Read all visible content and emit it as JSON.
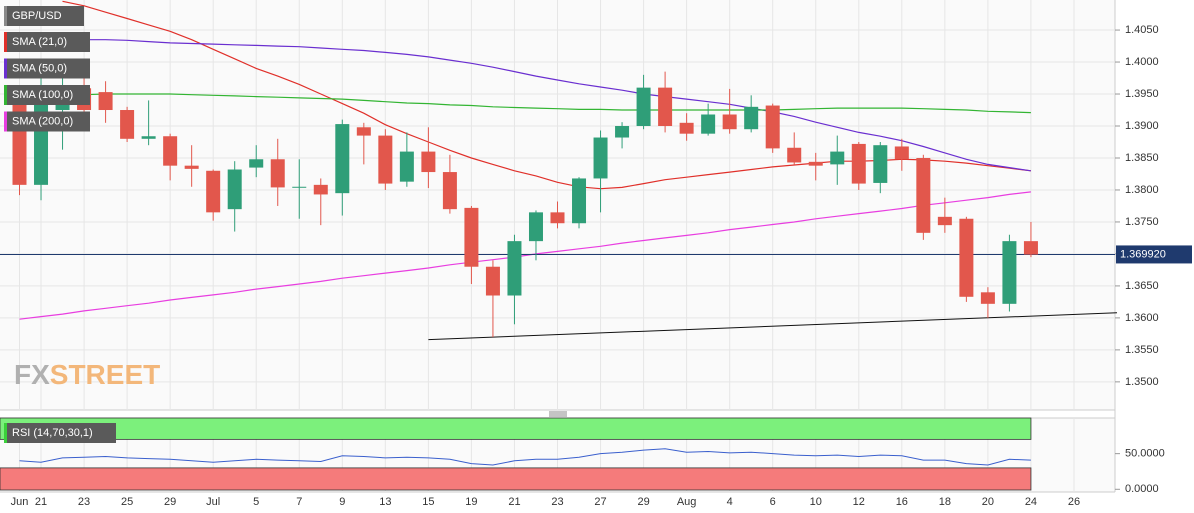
{
  "chart_data": [
    {
      "type": "candlestick",
      "name": "GBP/USD",
      "categories": [
        "Jun",
        "21",
        null,
        "23",
        null,
        "25",
        null,
        "29",
        null,
        "Jul",
        null,
        "5",
        null,
        "7",
        null,
        "9",
        null,
        "13",
        null,
        "15",
        null,
        "19",
        null,
        "21",
        null,
        "23",
        null,
        "27",
        null,
        "29",
        null,
        "Aug",
        null,
        "4",
        null,
        "6",
        null,
        "10",
        null,
        "12",
        null,
        "16",
        null,
        "18",
        null,
        "20",
        null,
        "24",
        null,
        "26"
      ],
      "open": [
        1.394,
        1.3808,
        1.3925,
        1.3959,
        1.3953,
        1.3925,
        1.388,
        1.3884,
        1.3838,
        1.383,
        1.377,
        1.3835,
        1.3848,
        1.3804,
        1.3808,
        1.3795,
        1.3898,
        1.3885,
        1.3813,
        1.386,
        1.3828,
        1.3772,
        1.368,
        1.3635,
        1.372,
        1.3765,
        1.3748,
        1.3818,
        1.3882,
        1.39,
        1.396,
        1.3905,
        1.3888,
        1.3918,
        1.3895,
        1.3932,
        1.3866,
        1.3844,
        1.384,
        1.3872,
        1.3811,
        1.3868,
        1.385,
        1.3758,
        1.3755,
        1.364,
        1.3622,
        1.372,
        null,
        null
      ],
      "high": [
        1.3948,
        1.3998,
        1.4003,
        1.3988,
        1.397,
        1.393,
        1.394,
        1.3888,
        1.387,
        1.3832,
        1.3845,
        1.387,
        1.388,
        1.3848,
        1.3818,
        1.391,
        1.3905,
        1.3895,
        1.389,
        1.3898,
        1.3855,
        1.3775,
        1.369,
        1.373,
        1.3768,
        1.3782,
        1.382,
        1.3893,
        1.3906,
        1.398,
        1.3985,
        1.392,
        1.3935,
        1.3958,
        1.3948,
        1.3935,
        1.389,
        1.3858,
        1.3885,
        1.3875,
        1.3875,
        1.388,
        1.3855,
        1.3788,
        1.3758,
        1.3648,
        1.373,
        1.375,
        null,
        null
      ],
      "low": [
        1.3792,
        1.3784,
        1.3863,
        1.3909,
        1.3905,
        1.3875,
        1.387,
        1.3815,
        1.3805,
        1.3752,
        1.3735,
        1.382,
        1.3775,
        1.3755,
        1.3745,
        1.376,
        1.384,
        1.38,
        1.3805,
        1.3803,
        1.3763,
        1.3653,
        1.357,
        1.359,
        1.369,
        1.374,
        1.374,
        1.3765,
        1.3865,
        1.3895,
        1.389,
        1.3877,
        1.3885,
        1.3888,
        1.389,
        1.3858,
        1.384,
        1.3815,
        1.3808,
        1.38,
        1.3795,
        1.383,
        1.3722,
        1.3733,
        1.3625,
        1.36,
        1.361,
        1.3695,
        null,
        null
      ],
      "close": [
        1.3808,
        1.3941,
        1.3953,
        1.3925,
        1.3925,
        1.388,
        1.3884,
        1.3838,
        1.3833,
        1.3765,
        1.3832,
        1.3848,
        1.3804,
        1.3805,
        1.3793,
        1.3903,
        1.3885,
        1.381,
        1.386,
        1.3828,
        1.377,
        1.368,
        1.3635,
        1.372,
        1.3765,
        1.3748,
        1.3818,
        1.3882,
        1.39,
        1.396,
        1.39,
        1.3888,
        1.3918,
        1.3895,
        1.393,
        1.3865,
        1.3843,
        1.3838,
        1.386,
        1.381,
        1.387,
        1.3848,
        1.3733,
        1.3745,
        1.3633,
        1.3622,
        1.372,
        1.3699,
        null,
        null
      ],
      "up_color": "#2f9e78",
      "down_color": "#e2574c",
      "series": [
        {
          "name": "SMA (21,0)",
          "color": "#e0302a",
          "values": [
            null,
            null,
            1.4095,
            1.4088,
            1.4078,
            1.4068,
            1.4058,
            1.4048,
            1.4035,
            1.402,
            1.4005,
            1.399,
            1.3978,
            1.3965,
            1.395,
            1.3935,
            1.392,
            1.3902,
            1.3888,
            1.3875,
            1.3862,
            1.385,
            1.384,
            1.383,
            1.3822,
            1.3812,
            1.3805,
            1.3802,
            1.3804,
            1.381,
            1.3816,
            1.382,
            1.3824,
            1.3828,
            1.3832,
            1.3836,
            1.3839,
            1.3842,
            1.3845,
            1.3845,
            1.3846,
            1.3848,
            1.3847,
            1.3845,
            1.3842,
            1.3838,
            1.3834,
            1.383,
            null,
            null
          ]
        },
        {
          "name": "SMA (50,0)",
          "color": "#6a2fd0",
          "values": [
            1.403,
            1.4032,
            1.4034,
            1.4035,
            1.4035,
            1.4034,
            1.4032,
            1.403,
            1.4029,
            1.4028,
            1.4027,
            1.4026,
            1.4025,
            1.4024,
            1.4022,
            1.402,
            1.4018,
            1.4015,
            1.4012,
            1.4008,
            1.4003,
            1.3998,
            1.3992,
            1.3985,
            1.3978,
            1.3972,
            1.3966,
            1.3961,
            1.3956,
            1.395,
            1.3946,
            1.3942,
            1.3938,
            1.3934,
            1.3928,
            1.3922,
            1.3915,
            1.3906,
            1.3898,
            1.389,
            1.3884,
            1.3877,
            1.3868,
            1.3858,
            1.3848,
            1.384,
            1.3835,
            1.383,
            null,
            null
          ]
        },
        {
          "name": "SMA (100,0)",
          "color": "#33b533",
          "values": [
            1.3945,
            1.3946,
            1.3948,
            1.3949,
            1.395,
            1.395,
            1.395,
            1.395,
            1.3949,
            1.3948,
            1.3947,
            1.3946,
            1.3945,
            1.3944,
            1.3943,
            1.3942,
            1.394,
            1.3938,
            1.3936,
            1.3935,
            1.3933,
            1.3932,
            1.393,
            1.3929,
            1.3928,
            1.3927,
            1.3926,
            1.3926,
            1.3925,
            1.3925,
            1.3925,
            1.3925,
            1.3925,
            1.3925,
            1.3925,
            1.3925,
            1.3926,
            1.3927,
            1.3928,
            1.3928,
            1.3928,
            1.3928,
            1.3927,
            1.3926,
            1.3925,
            1.3923,
            1.3922,
            1.3921,
            null,
            null
          ]
        },
        {
          "name": "SMA (200,0)",
          "color": "#e83ee0",
          "values": [
            1.3598,
            1.3602,
            1.3606,
            1.3611,
            1.3615,
            1.3619,
            1.3623,
            1.3628,
            1.3632,
            1.3636,
            1.364,
            1.3645,
            1.3649,
            1.3653,
            1.3657,
            1.3662,
            1.3666,
            1.367,
            1.3674,
            1.3678,
            1.3683,
            1.3687,
            1.3691,
            1.3695,
            1.37,
            1.3704,
            1.3708,
            1.3712,
            1.3717,
            1.3721,
            1.3725,
            1.3729,
            1.3733,
            1.3738,
            1.3742,
            1.3746,
            1.375,
            1.3755,
            1.3759,
            1.3763,
            1.3767,
            1.3771,
            1.3776,
            1.378,
            1.3784,
            1.3788,
            1.3793,
            1.3797,
            null,
            null
          ]
        }
      ],
      "trendline": {
        "start": [
          19,
          1.3566
        ],
        "end": [
          51,
          1.3608
        ],
        "color": "#111111"
      },
      "last_price": {
        "value": 1.36992,
        "label": "1.369920",
        "color": "#1f3a6e"
      },
      "ylim": [
        1.3456,
        1.4097
      ],
      "yticks": [
        {
          "value": 1.35,
          "label": "1.3500"
        },
        {
          "value": 1.355,
          "label": "1.3550"
        },
        {
          "value": 1.36,
          "label": "1.3600"
        },
        {
          "value": 1.365,
          "label": "1.3650"
        },
        {
          "value": 1.37,
          "label": "1.3700"
        },
        {
          "value": 1.375,
          "label": "1.3750"
        },
        {
          "value": 1.38,
          "label": "1.3800"
        },
        {
          "value": 1.385,
          "label": "1.3850"
        },
        {
          "value": 1.39,
          "label": "1.3900"
        },
        {
          "value": 1.395,
          "label": "1.3950"
        },
        {
          "value": 1.4,
          "label": "1.4000"
        },
        {
          "value": 1.405,
          "label": "1.4050"
        }
      ],
      "grid": true,
      "watermark": [
        "FX",
        "STREET"
      ]
    },
    {
      "type": "line",
      "title": "RSI (14,70,30,1)",
      "values": [
        40,
        38,
        44,
        45,
        46,
        44,
        43,
        42,
        40,
        38,
        40,
        42,
        41,
        40,
        39,
        47,
        46,
        44,
        45,
        44,
        42,
        36,
        34,
        40,
        42,
        42,
        45,
        50,
        52,
        55,
        57,
        52,
        53,
        51,
        52,
        50,
        48,
        47,
        48,
        46,
        48,
        47,
        41,
        41,
        36,
        34,
        42,
        41
      ],
      "color": "#3a5fcd",
      "overbought": 70,
      "oversold": 30,
      "overbought_color": "#7cf07c",
      "oversold_color": "#f57b7b",
      "ylim": [
        -1,
        100
      ],
      "yticks": [
        {
          "value": 50,
          "label": "50.0000"
        },
        {
          "value": 0,
          "label": "0.0000"
        }
      ]
    }
  ]
}
